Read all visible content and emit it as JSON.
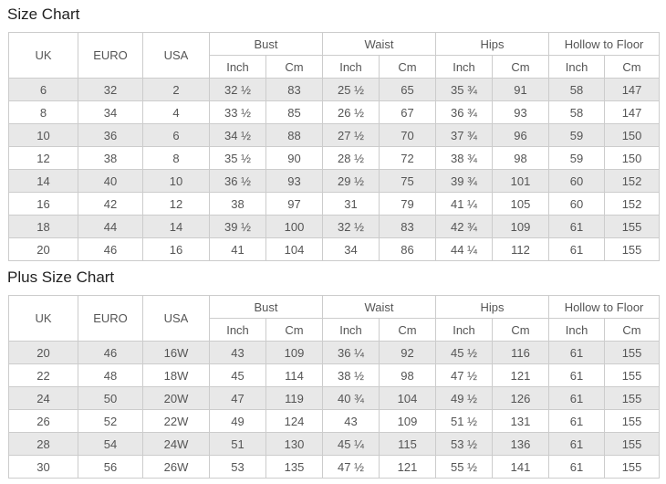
{
  "colors": {
    "stripe": "#e8e8e8",
    "border": "#cccccc",
    "cell_text": "#555555",
    "title_text": "#222222",
    "background": "#ffffff"
  },
  "tables": [
    {
      "title": "Size Chart",
      "header": {
        "simple_columns": [
          "UK",
          "EURO",
          "USA"
        ],
        "group_columns": [
          "Bust",
          "Waist",
          "Hips",
          "Hollow to Floor"
        ],
        "sub_columns": [
          "Inch",
          "Cm"
        ]
      },
      "rows": [
        [
          "6",
          "32",
          "2",
          "32 ½",
          "83",
          "25 ½",
          "65",
          "35 ¾",
          "91",
          "58",
          "147"
        ],
        [
          "8",
          "34",
          "4",
          "33 ½",
          "85",
          "26 ½",
          "67",
          "36 ¾",
          "93",
          "58",
          "147"
        ],
        [
          "10",
          "36",
          "6",
          "34 ½",
          "88",
          "27 ½",
          "70",
          "37 ¾",
          "96",
          "59",
          "150"
        ],
        [
          "12",
          "38",
          "8",
          "35 ½",
          "90",
          "28 ½",
          "72",
          "38 ¾",
          "98",
          "59",
          "150"
        ],
        [
          "14",
          "40",
          "10",
          "36 ½",
          "93",
          "29 ½",
          "75",
          "39 ¾",
          "101",
          "60",
          "152"
        ],
        [
          "16",
          "42",
          "12",
          "38",
          "97",
          "31",
          "79",
          "41 ¼",
          "105",
          "60",
          "152"
        ],
        [
          "18",
          "44",
          "14",
          "39 ½",
          "100",
          "32 ½",
          "83",
          "42 ¾",
          "109",
          "61",
          "155"
        ],
        [
          "20",
          "46",
          "16",
          "41",
          "104",
          "34",
          "86",
          "44 ¼",
          "112",
          "61",
          "155"
        ]
      ]
    },
    {
      "title": "Plus Size Chart",
      "header": {
        "simple_columns": [
          "UK",
          "EURO",
          "USA"
        ],
        "group_columns": [
          "Bust",
          "Waist",
          "Hips",
          "Hollow to Floor"
        ],
        "sub_columns": [
          "Inch",
          "Cm"
        ]
      },
      "rows": [
        [
          "20",
          "46",
          "16W",
          "43",
          "109",
          "36 ¼",
          "92",
          "45 ½",
          "116",
          "61",
          "155"
        ],
        [
          "22",
          "48",
          "18W",
          "45",
          "114",
          "38 ½",
          "98",
          "47 ½",
          "121",
          "61",
          "155"
        ],
        [
          "24",
          "50",
          "20W",
          "47",
          "119",
          "40 ¾",
          "104",
          "49 ½",
          "126",
          "61",
          "155"
        ],
        [
          "26",
          "52",
          "22W",
          "49",
          "124",
          "43",
          "109",
          "51 ½",
          "131",
          "61",
          "155"
        ],
        [
          "28",
          "54",
          "24W",
          "51",
          "130",
          "45 ¼",
          "115",
          "53 ½",
          "136",
          "61",
          "155"
        ],
        [
          "30",
          "56",
          "26W",
          "53",
          "135",
          "47 ½",
          "121",
          "55 ½",
          "141",
          "61",
          "155"
        ]
      ]
    }
  ]
}
